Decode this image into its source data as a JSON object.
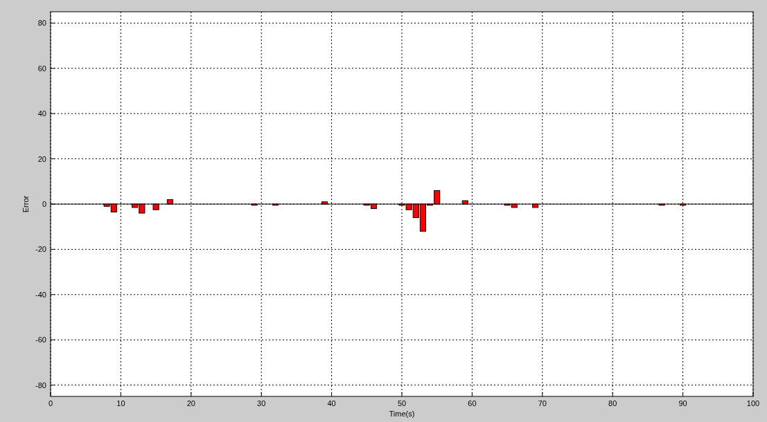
{
  "chart_data": {
    "type": "bar",
    "xlabel": "Time(s)",
    "ylabel": "Error",
    "x": [
      8,
      9,
      12,
      13,
      15,
      17,
      29,
      32,
      39,
      45,
      46,
      50,
      51,
      52,
      53,
      54,
      55,
      59,
      65,
      66,
      69,
      87,
      90
    ],
    "values": [
      -1,
      -3.5,
      -1.5,
      -4,
      -2.5,
      2,
      -0.5,
      -0.5,
      1,
      -0.5,
      -2,
      -0.5,
      -2.5,
      -6,
      -12,
      -0.5,
      6,
      1.5,
      -0.5,
      -1.5,
      -1.5,
      -0.5,
      -0.5
    ],
    "color": "#ff0000",
    "xlim": [
      0,
      100
    ],
    "xticks": [
      0,
      10,
      20,
      30,
      40,
      50,
      60,
      70,
      80,
      90,
      100
    ],
    "ylim": [
      -85,
      85
    ],
    "yticks": [
      -80,
      -60,
      -40,
      -20,
      0,
      20,
      40,
      60,
      80
    ],
    "grid": true
  }
}
